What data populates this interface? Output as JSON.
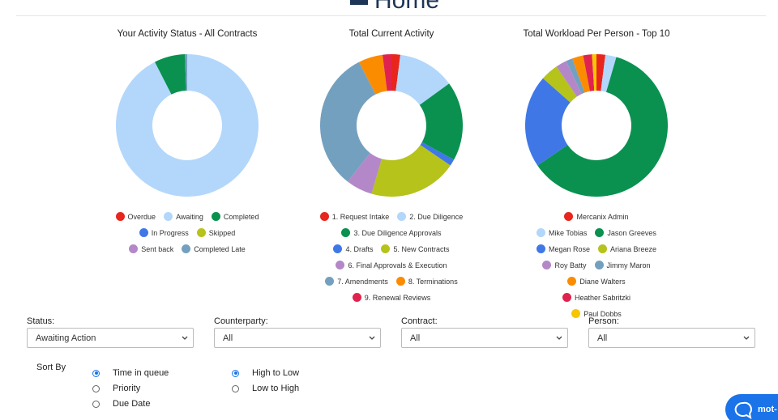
{
  "header": {
    "title": "Home"
  },
  "charts": [
    {
      "type": "pie",
      "title": "Your Activity Status - All Contracts",
      "categories": [
        "Overdue",
        "Awaiting",
        "Completed",
        "In Progress",
        "Skipped",
        "Sent back",
        "Completed Late"
      ],
      "values": [
        0,
        92.5,
        7,
        0,
        0,
        0,
        0.5
      ],
      "colors": [
        "#e8261c",
        "#b3d7fb",
        "#0a9150",
        "#3f78e6",
        "#b5c31b",
        "#b488c8",
        "#74a0c0"
      ]
    },
    {
      "type": "pie",
      "title": "Total Current Activity",
      "categories": [
        "1. Request Intake",
        "2. Due Diligence",
        "3. Due Diligence Approvals",
        "4. Drafts",
        "5. New Contracts",
        "6. Final Approvals & Execution",
        "7. Amendments",
        "8. Terminations",
        "9. Renewal Reviews"
      ],
      "values": [
        2,
        13,
        18,
        1.5,
        20,
        6,
        32,
        5.5,
        2
      ],
      "colors": [
        "#e8261c",
        "#b3d7fb",
        "#0a9150",
        "#3f78e6",
        "#b5c31b",
        "#b488c8",
        "#74a0c0",
        "#fb8c00",
        "#e0234e"
      ]
    },
    {
      "type": "pie",
      "title": "Total Workload Per Person - Top 10",
      "categories": [
        "Mercanix Admin",
        "Mike Tobias",
        "Jason Greeves",
        "Megan Rose",
        "Ariana Breeze",
        "Roy Batty",
        "Jimmy Maron",
        "Diane Walters",
        "Heather Sabritzki",
        "Paul Dobbs"
      ],
      "values": [
        2,
        2.5,
        61,
        21,
        4,
        2.5,
        1.5,
        2.5,
        2,
        1
      ],
      "colors": [
        "#e8261c",
        "#b3d7fb",
        "#0a9150",
        "#3f78e6",
        "#b5c31b",
        "#b488c8",
        "#74a0c0",
        "#fb8c00",
        "#e0234e",
        "#f7c600"
      ]
    }
  ],
  "filters": [
    {
      "label": "Status:",
      "value": "Awaiting Action"
    },
    {
      "label": "Counterparty:",
      "value": "All"
    },
    {
      "label": "Contract:",
      "value": "All"
    },
    {
      "label": "Person:",
      "value": "All"
    }
  ],
  "sort": {
    "label": "Sort By",
    "fields": [
      {
        "label": "Time in queue",
        "checked": true
      },
      {
        "label": "Priority",
        "checked": false
      },
      {
        "label": "Due Date",
        "checked": false
      }
    ],
    "order": [
      {
        "label": "High to Low",
        "checked": true
      },
      {
        "label": "Low to High",
        "checked": false
      }
    ]
  },
  "chat": {
    "label": "mot-"
  }
}
